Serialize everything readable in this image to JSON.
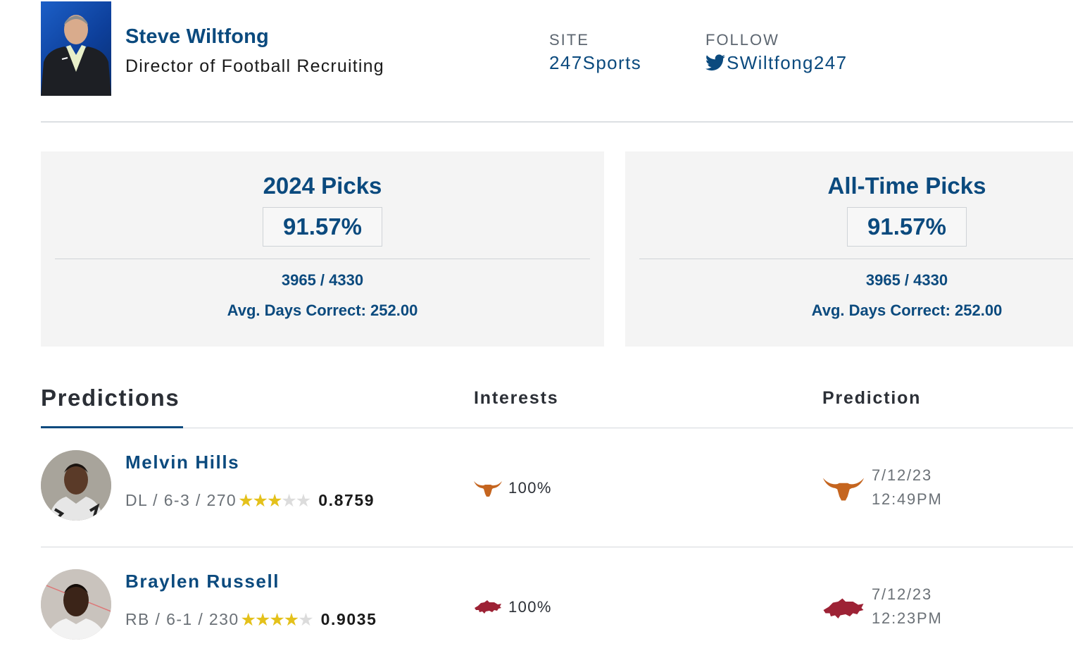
{
  "expert": {
    "name": "Steve Wiltfong",
    "title": "Director of Football Recruiting",
    "site_label": "SITE",
    "site_value": "247Sports",
    "follow_label": "FOLLOW",
    "follow_handle": "SWiltfong247"
  },
  "stats": [
    {
      "title": "2024 Picks",
      "percentage": "91.57%",
      "ratio": "3965 / 4330",
      "avg_days": "Avg. Days Correct: 252.00"
    },
    {
      "title": "All-Time Picks",
      "percentage": "91.57%",
      "ratio": "3965 / 4330",
      "avg_days": "Avg. Days Correct: 252.00"
    }
  ],
  "predictions": {
    "tab_label": "Predictions",
    "col_interests": "Interests",
    "col_prediction": "Prediction",
    "rows": [
      {
        "name": "Melvin Hills",
        "meta": "DL / 6-3 / 270",
        "stars": 3,
        "rating": "0.8759",
        "interest_pct": "100%",
        "team_icon": "texas-longhorns-logo-icon",
        "date": "7/12/23",
        "time": "12:49PM"
      },
      {
        "name": "Braylen Russell",
        "meta": "RB / 6-1 / 230",
        "stars": 4,
        "rating": "0.9035",
        "interest_pct": "100%",
        "team_icon": "arkansas-razorbacks-logo-icon",
        "date": "7/12/23",
        "time": "12:23PM"
      }
    ]
  },
  "colors": {
    "brand_blue": "#0b4a7e",
    "star_gold": "#e4c11b",
    "texas_orange": "#c5651f",
    "arkansas_red": "#9d2235"
  }
}
